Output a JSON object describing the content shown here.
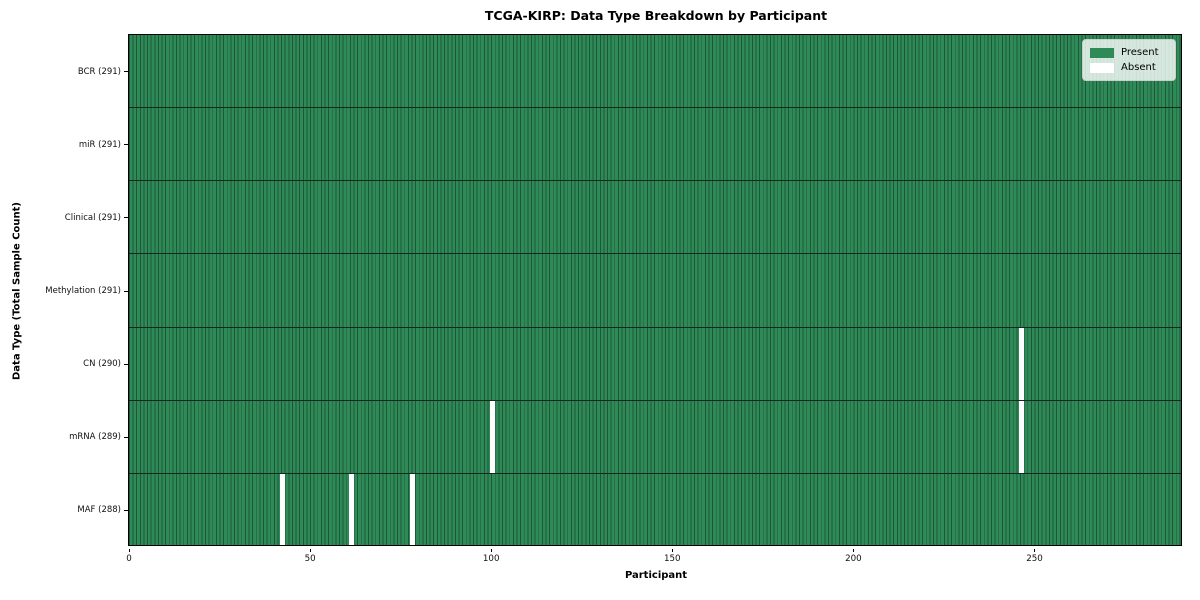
{
  "chart_data": {
    "type": "heatmap",
    "title": "TCGA-KIRP: Data Type Breakdown by Participant",
    "xlabel": "Participant",
    "ylabel": "Data Type (Total Sample Count)",
    "x_ticks": [
      0,
      50,
      100,
      150,
      200,
      250
    ],
    "x_range": [
      0,
      291
    ],
    "n_participants": 291,
    "grid": false,
    "legend_position": "upper-right",
    "rows": [
      {
        "label": "BCR (291)",
        "data_type": "BCR",
        "total": 291,
        "absent_participants": []
      },
      {
        "label": "miR (291)",
        "data_type": "miR",
        "total": 291,
        "absent_participants": []
      },
      {
        "label": "Clinical (291)",
        "data_type": "Clinical",
        "total": 291,
        "absent_participants": []
      },
      {
        "label": "Methylation (291)",
        "data_type": "Methylation",
        "total": 291,
        "absent_participants": []
      },
      {
        "label": "CN (290)",
        "data_type": "CN",
        "total": 290,
        "absent_participants": [
          246
        ]
      },
      {
        "label": "mRNA (289)",
        "data_type": "mRNA",
        "total": 289,
        "absent_participants": [
          100,
          246
        ]
      },
      {
        "label": "MAF (288)",
        "data_type": "MAF",
        "total": 288,
        "absent_participants": [
          42,
          61,
          78
        ]
      }
    ],
    "legend": [
      {
        "label": "Present",
        "color": "#2e8b57"
      },
      {
        "label": "Absent",
        "color": "#ffffff"
      }
    ],
    "colors": {
      "present": "#2e8b57",
      "absent": "#ffffff",
      "cell_edge": "#1d5737",
      "row_separator": "#13291d",
      "spine": "#000000"
    }
  }
}
